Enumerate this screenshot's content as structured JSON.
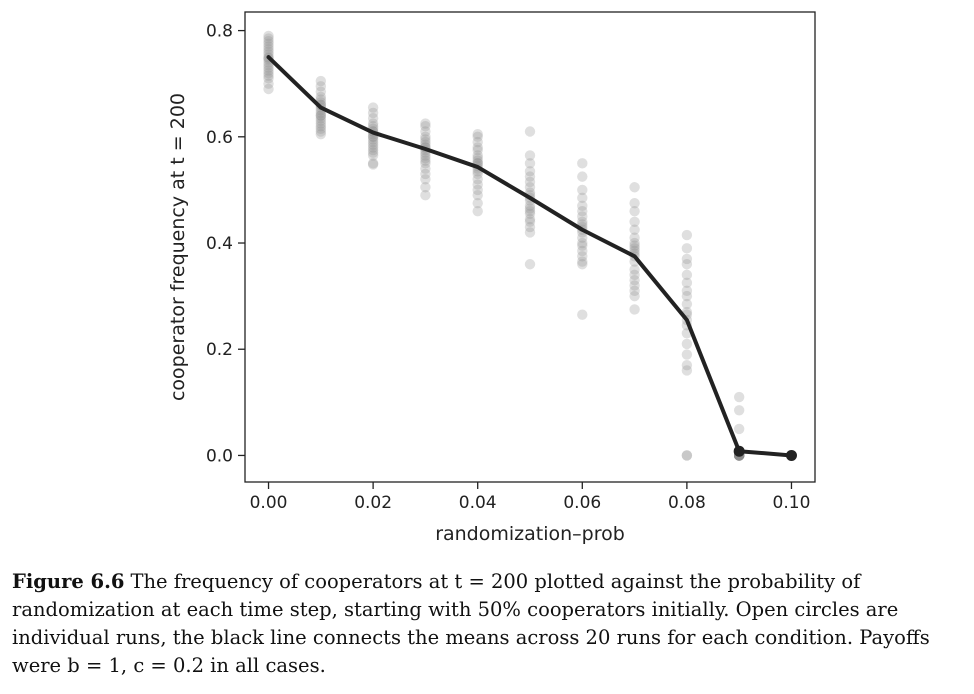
{
  "chart_data": {
    "type": "scatter",
    "xlabel": "randomization–prob",
    "ylabel": "cooperator frequency at  t = 200",
    "xlim": [
      -0.0045,
      0.1045
    ],
    "ylim": [
      -0.05,
      0.835
    ],
    "x_ticks": [
      "0.00",
      "0.02",
      "0.04",
      "0.06",
      "0.08",
      "0.10"
    ],
    "y_ticks": [
      "0.0",
      "0.2",
      "0.4",
      "0.6",
      "0.8"
    ],
    "grid": false,
    "legend": "none",
    "series": [
      {
        "style": "points",
        "marker": "circle",
        "color": "#8c8c8c",
        "points": [
          [
            0.0,
            0.79
          ],
          [
            0.0,
            0.785
          ],
          [
            0.0,
            0.78
          ],
          [
            0.0,
            0.775
          ],
          [
            0.0,
            0.77
          ],
          [
            0.0,
            0.765
          ],
          [
            0.0,
            0.76
          ],
          [
            0.0,
            0.755
          ],
          [
            0.0,
            0.75
          ],
          [
            0.0,
            0.748
          ],
          [
            0.0,
            0.745
          ],
          [
            0.0,
            0.74
          ],
          [
            0.0,
            0.735
          ],
          [
            0.0,
            0.73
          ],
          [
            0.0,
            0.725
          ],
          [
            0.0,
            0.72
          ],
          [
            0.0,
            0.715
          ],
          [
            0.0,
            0.71
          ],
          [
            0.0,
            0.7
          ],
          [
            0.0,
            0.69
          ],
          [
            0.01,
            0.705
          ],
          [
            0.01,
            0.695
          ],
          [
            0.01,
            0.685
          ],
          [
            0.01,
            0.675
          ],
          [
            0.01,
            0.67
          ],
          [
            0.01,
            0.665
          ],
          [
            0.01,
            0.66
          ],
          [
            0.01,
            0.655
          ],
          [
            0.01,
            0.65
          ],
          [
            0.01,
            0.645
          ],
          [
            0.01,
            0.64
          ],
          [
            0.01,
            0.635
          ],
          [
            0.01,
            0.63
          ],
          [
            0.01,
            0.625
          ],
          [
            0.01,
            0.62
          ],
          [
            0.01,
            0.615
          ],
          [
            0.01,
            0.61
          ],
          [
            0.01,
            0.605
          ],
          [
            0.01,
            0.66
          ],
          [
            0.01,
            0.64
          ],
          [
            0.02,
            0.655
          ],
          [
            0.02,
            0.645
          ],
          [
            0.02,
            0.635
          ],
          [
            0.02,
            0.625
          ],
          [
            0.02,
            0.62
          ],
          [
            0.02,
            0.615
          ],
          [
            0.02,
            0.61
          ],
          [
            0.02,
            0.605
          ],
          [
            0.02,
            0.6
          ],
          [
            0.02,
            0.595
          ],
          [
            0.02,
            0.59
          ],
          [
            0.02,
            0.585
          ],
          [
            0.02,
            0.58
          ],
          [
            0.02,
            0.575
          ],
          [
            0.02,
            0.57
          ],
          [
            0.02,
            0.565
          ],
          [
            0.02,
            0.55
          ],
          [
            0.02,
            0.548
          ],
          [
            0.02,
            0.61
          ],
          [
            0.02,
            0.6
          ],
          [
            0.03,
            0.625
          ],
          [
            0.03,
            0.62
          ],
          [
            0.03,
            0.61
          ],
          [
            0.03,
            0.6
          ],
          [
            0.03,
            0.595
          ],
          [
            0.03,
            0.59
          ],
          [
            0.03,
            0.585
          ],
          [
            0.03,
            0.58
          ],
          [
            0.03,
            0.575
          ],
          [
            0.03,
            0.57
          ],
          [
            0.03,
            0.565
          ],
          [
            0.03,
            0.56
          ],
          [
            0.03,
            0.555
          ],
          [
            0.03,
            0.55
          ],
          [
            0.03,
            0.54
          ],
          [
            0.03,
            0.53
          ],
          [
            0.03,
            0.52
          ],
          [
            0.03,
            0.505
          ],
          [
            0.03,
            0.49
          ],
          [
            0.03,
            0.58
          ],
          [
            0.04,
            0.605
          ],
          [
            0.04,
            0.6
          ],
          [
            0.04,
            0.59
          ],
          [
            0.04,
            0.58
          ],
          [
            0.04,
            0.575
          ],
          [
            0.04,
            0.565
          ],
          [
            0.04,
            0.56
          ],
          [
            0.04,
            0.555
          ],
          [
            0.04,
            0.55
          ],
          [
            0.04,
            0.545
          ],
          [
            0.04,
            0.54
          ],
          [
            0.04,
            0.535
          ],
          [
            0.04,
            0.53
          ],
          [
            0.04,
            0.52
          ],
          [
            0.04,
            0.51
          ],
          [
            0.04,
            0.5
          ],
          [
            0.04,
            0.49
          ],
          [
            0.04,
            0.475
          ],
          [
            0.04,
            0.46
          ],
          [
            0.04,
            0.55
          ],
          [
            0.05,
            0.61
          ],
          [
            0.05,
            0.565
          ],
          [
            0.05,
            0.55
          ],
          [
            0.05,
            0.535
          ],
          [
            0.05,
            0.525
          ],
          [
            0.05,
            0.515
          ],
          [
            0.05,
            0.505
          ],
          [
            0.05,
            0.495
          ],
          [
            0.05,
            0.49
          ],
          [
            0.05,
            0.485
          ],
          [
            0.05,
            0.48
          ],
          [
            0.05,
            0.47
          ],
          [
            0.05,
            0.465
          ],
          [
            0.05,
            0.46
          ],
          [
            0.05,
            0.455
          ],
          [
            0.05,
            0.445
          ],
          [
            0.05,
            0.44
          ],
          [
            0.05,
            0.43
          ],
          [
            0.05,
            0.42
          ],
          [
            0.05,
            0.36
          ],
          [
            0.06,
            0.55
          ],
          [
            0.06,
            0.525
          ],
          [
            0.06,
            0.5
          ],
          [
            0.06,
            0.485
          ],
          [
            0.06,
            0.47
          ],
          [
            0.06,
            0.46
          ],
          [
            0.06,
            0.45
          ],
          [
            0.06,
            0.44
          ],
          [
            0.06,
            0.435
          ],
          [
            0.06,
            0.43
          ],
          [
            0.06,
            0.425
          ],
          [
            0.06,
            0.42
          ],
          [
            0.06,
            0.41
          ],
          [
            0.06,
            0.4
          ],
          [
            0.06,
            0.395
          ],
          [
            0.06,
            0.385
          ],
          [
            0.06,
            0.375
          ],
          [
            0.06,
            0.365
          ],
          [
            0.06,
            0.36
          ],
          [
            0.06,
            0.265
          ],
          [
            0.07,
            0.505
          ],
          [
            0.07,
            0.475
          ],
          [
            0.07,
            0.46
          ],
          [
            0.07,
            0.44
          ],
          [
            0.07,
            0.425
          ],
          [
            0.07,
            0.41
          ],
          [
            0.07,
            0.4
          ],
          [
            0.07,
            0.395
          ],
          [
            0.07,
            0.39
          ],
          [
            0.07,
            0.385
          ],
          [
            0.07,
            0.375
          ],
          [
            0.07,
            0.365
          ],
          [
            0.07,
            0.35
          ],
          [
            0.07,
            0.34
          ],
          [
            0.07,
            0.33
          ],
          [
            0.07,
            0.32
          ],
          [
            0.07,
            0.31
          ],
          [
            0.07,
            0.3
          ],
          [
            0.07,
            0.275
          ],
          [
            0.07,
            0.38
          ],
          [
            0.08,
            0.415
          ],
          [
            0.08,
            0.39
          ],
          [
            0.08,
            0.37
          ],
          [
            0.08,
            0.36
          ],
          [
            0.08,
            0.34
          ],
          [
            0.08,
            0.325
          ],
          [
            0.08,
            0.31
          ],
          [
            0.08,
            0.3
          ],
          [
            0.08,
            0.285
          ],
          [
            0.08,
            0.27
          ],
          [
            0.08,
            0.255
          ],
          [
            0.08,
            0.245
          ],
          [
            0.08,
            0.23
          ],
          [
            0.08,
            0.21
          ],
          [
            0.08,
            0.19
          ],
          [
            0.08,
            0.17
          ],
          [
            0.08,
            0.16
          ],
          [
            0.08,
            0.0
          ],
          [
            0.08,
            0.0
          ],
          [
            0.08,
            0.265
          ],
          [
            0.09,
            0.11
          ],
          [
            0.09,
            0.085
          ],
          [
            0.09,
            0.05
          ],
          [
            0.09,
            0.0
          ],
          [
            0.09,
            0.0
          ],
          [
            0.09,
            0.0
          ],
          [
            0.09,
            0.0
          ],
          [
            0.09,
            0.0
          ],
          [
            0.09,
            0.0
          ],
          [
            0.09,
            0.0
          ],
          [
            0.09,
            0.0
          ],
          [
            0.09,
            0.0
          ],
          [
            0.09,
            0.0
          ],
          [
            0.09,
            0.0
          ],
          [
            0.09,
            0.0
          ],
          [
            0.09,
            0.0
          ],
          [
            0.09,
            0.0
          ],
          [
            0.09,
            0.0
          ],
          [
            0.09,
            0.0
          ],
          [
            0.09,
            0.0
          ],
          [
            0.1,
            0.0
          ]
        ]
      },
      {
        "style": "line",
        "color": "#222222",
        "x": [
          0.0,
          0.01,
          0.02,
          0.03,
          0.04,
          0.05,
          0.06,
          0.07,
          0.08,
          0.09,
          0.1
        ],
        "y": [
          0.75,
          0.655,
          0.608,
          0.577,
          0.543,
          0.485,
          0.425,
          0.375,
          0.255,
          0.008,
          0.0
        ],
        "end_markers_from_index": 9
      }
    ]
  },
  "caption": {
    "label": "Figure 6.6",
    "text": "The frequency of cooperators at t = 200 plotted against the probability of randomization at each time step, starting with 50% cooperators initially. Open circles are individual runs, the black line connects the means across 20 runs for each condition. Payoffs were b = 1, c = 0.2 in all cases."
  }
}
